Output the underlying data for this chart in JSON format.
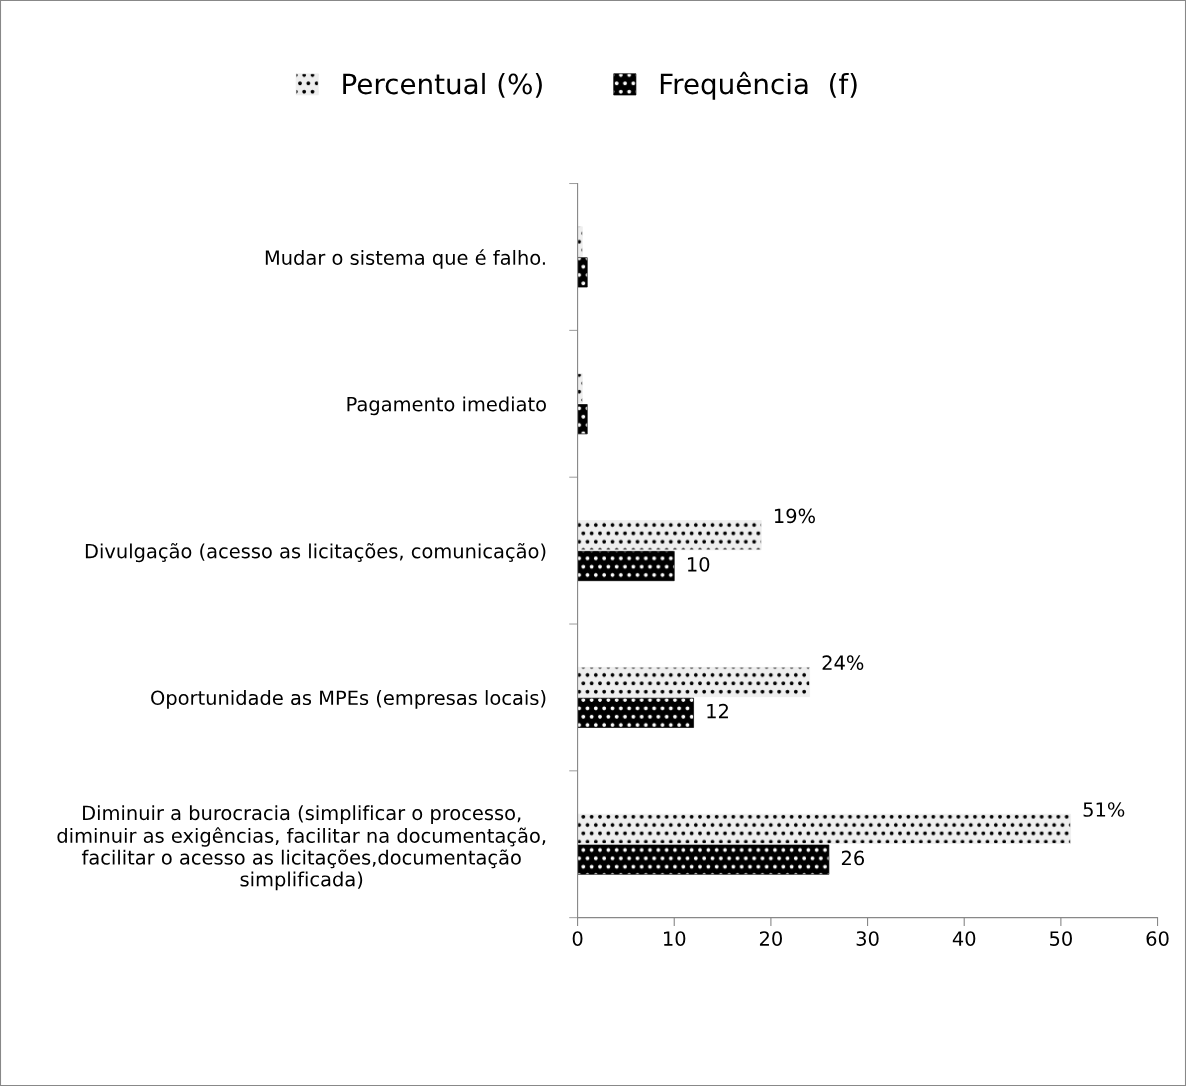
{
  "chart_data": {
    "type": "bar",
    "orientation": "horizontal",
    "categories": [
      "Mudar o sistema que é falho.",
      "Pagamento imediato",
      "Divulgação (acesso as licitações, comunicação)",
      "Oportunidade as MPEs (empresas locais)",
      "Diminuir a burocracia (simplificar o processo,\ndiminuir as exigências, facilitar na documentação,\nfacilitar o acesso as licitações,documentação\nsimplificada)"
    ],
    "series": [
      {
        "name": "Percentual (%)",
        "color": "#eeeeee",
        "values": [
          0.5,
          0.5,
          19,
          24,
          51
        ],
        "value_labels": [
          null,
          null,
          "19%",
          "24%",
          "51%"
        ]
      },
      {
        "name": "Frequência  (f)",
        "color": "#000000",
        "values": [
          1,
          1,
          10,
          12,
          26
        ],
        "value_labels": [
          null,
          null,
          "10",
          "12",
          "26"
        ]
      }
    ],
    "xlim": [
      0,
      60
    ],
    "xticks": [
      0,
      10,
      20,
      30,
      40,
      50,
      60
    ],
    "grid": false,
    "legend": "top"
  }
}
